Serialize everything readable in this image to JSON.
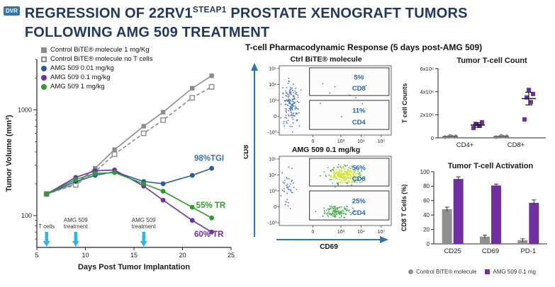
{
  "badge": "DVR",
  "title": {
    "line1_pre": "REGRESSION OF 22RV1",
    "line1_sup": "STEAP1",
    "line1_post": " PROSTATE XENOGRAFT TUMORS",
    "line2": "FOLLOWING AMG 509 TREATMENT"
  },
  "section_header": "T-cell Pharmacodynamic Response (5 days post-AMG 509)",
  "colors": {
    "title_navy": "#1f3864",
    "badge_blue": "#2e75b6",
    "control_gray": "#8c8c8c",
    "amg_blue": "#2b5aa5",
    "amg_purple": "#7030a0",
    "amg_green": "#2e9b2e",
    "arrow_cyan": "#2bb8e8",
    "gate_label_blue": "#2563ae",
    "axis_arrow_blue": "#2e75b6"
  },
  "chart_data": [
    {
      "id": "tumor_volume",
      "type": "line",
      "xlabel": "Days Post Tumor Implantation",
      "ylabel": "Tumor Volume (mm³)",
      "x": [
        6,
        9,
        11,
        13,
        16,
        18,
        21,
        23
      ],
      "xlim": [
        5,
        25
      ],
      "x_ticks": [
        5,
        10,
        15,
        20,
        25
      ],
      "y_scale": "log",
      "ylim": [
        50,
        3000
      ],
      "y_ticks": [
        100,
        1000
      ],
      "series": [
        {
          "name": "Control BiTE® molecule 1 mg/Kg",
          "color": "#8c8c8c",
          "marker": "square-filled",
          "line": "solid",
          "values": [
            160,
            200,
            280,
            420,
            700,
            950,
            1600,
            2100
          ]
        },
        {
          "name": "Control BiTE® molecule no T cells",
          "color": "#8c8c8c",
          "marker": "square-open",
          "line": "dashed",
          "values": [
            160,
            195,
            260,
            380,
            600,
            800,
            1300,
            1650
          ]
        },
        {
          "name": "AMG 509 0.01 mg/kg",
          "color": "#2b5aa5",
          "marker": "circle",
          "line": "solid",
          "values": [
            160,
            210,
            240,
            260,
            210,
            200,
            240,
            280
          ]
        },
        {
          "name": "AMG 509 0.1 mg/kg",
          "color": "#7030a0",
          "marker": "circle",
          "line": "solid",
          "values": [
            160,
            230,
            265,
            270,
            190,
            140,
            90,
            70
          ]
        },
        {
          "name": "AMG 509 1 mg/kg",
          "color": "#2e9b2e",
          "marker": "circle",
          "line": "solid",
          "values": [
            160,
            220,
            250,
            255,
            200,
            170,
            120,
            95
          ]
        }
      ],
      "annotations": [
        {
          "text": "98%TGI",
          "day": 21.2,
          "value": 330,
          "color": "#2e75b6"
        },
        {
          "text": "55% TR",
          "day": 21.4,
          "value": 118,
          "color": "#2e9b2e"
        },
        {
          "text": "60% TR",
          "day": 21.2,
          "value": 63,
          "color": "#7030a0"
        }
      ],
      "treatment_arrows": [
        {
          "label": "T cells",
          "day": 6
        },
        {
          "label": "AMG 509\ntreatment",
          "day": 9
        },
        {
          "label": "AMG 509\ntreatment",
          "day": 16
        }
      ],
      "arrow_color": "#2bb8e8"
    },
    {
      "id": "flow_cytometry",
      "type": "scatter",
      "xlabel": "CD69",
      "ylabel": "CD8",
      "x_ticks": [
        "0",
        "10³",
        "10⁴",
        "10⁵"
      ],
      "y_ticks": [
        "10⁵",
        "10⁴",
        "10³",
        "0",
        "-10³"
      ],
      "panels": [
        {
          "title": "Ctrl BiTE® molecule",
          "gates": [
            {
              "pct": "5%",
              "marker": "CD8"
            },
            {
              "pct": "11%",
              "marker": "CD4"
            }
          ]
        },
        {
          "title": "AMG 509 0.1 mg/kg",
          "gates": [
            {
              "pct": "56%",
              "marker": "CD8"
            },
            {
              "pct": "25%",
              "marker": "CD4"
            }
          ]
        }
      ]
    },
    {
      "id": "tumor_tcell_count",
      "type": "scatter",
      "title": "Tumor T-cell Count",
      "ylabel": "T cell Counts",
      "y_ticks": [
        "0",
        "2x10⁶",
        "4x10⁶",
        "6x10⁶"
      ],
      "ymax": 6000000,
      "categories": [
        "CD4+",
        "CD8+"
      ],
      "series_names": [
        "Control BiTE® molecule",
        "AMG 509 0.1 mg"
      ],
      "control_color": "#8c8c8c",
      "amg_color": "#7030a0",
      "groups": [
        {
          "category": "CD4+",
          "control": [
            60000,
            90000,
            110000,
            140000,
            170000
          ],
          "amg": [
            850000,
            1050000,
            1200000,
            1350000
          ],
          "amg_mean": 1110000,
          "amg_err": 200000
        },
        {
          "category": "CD8+",
          "control": [
            60000,
            90000,
            110000,
            140000,
            170000
          ],
          "amg": [
            1600000,
            3100000,
            3500000,
            3800000,
            4150000
          ],
          "amg_mean": 3400000,
          "amg_err": 550000
        }
      ]
    },
    {
      "id": "tumor_tcell_activation",
      "type": "bar",
      "title": "Tumor T-cell Activation",
      "ylabel": "CD8 T Cells (%)",
      "ylim": [
        0,
        100
      ],
      "y_ticks": [
        0,
        20,
        40,
        60,
        80,
        100
      ],
      "categories": [
        "CD25",
        "CD69",
        "PD-1"
      ],
      "series": [
        {
          "name": "Control BiTE® molecule",
          "color": "#909090",
          "marker": "circle",
          "values": [
            48,
            10,
            5
          ],
          "errors": [
            3,
            2,
            2
          ]
        },
        {
          "name": "AMG 509 0.1 mg",
          "color": "#7030a0",
          "marker": "square",
          "values": [
            90,
            81,
            57
          ],
          "errors": [
            3,
            2,
            4
          ]
        }
      ]
    }
  ]
}
